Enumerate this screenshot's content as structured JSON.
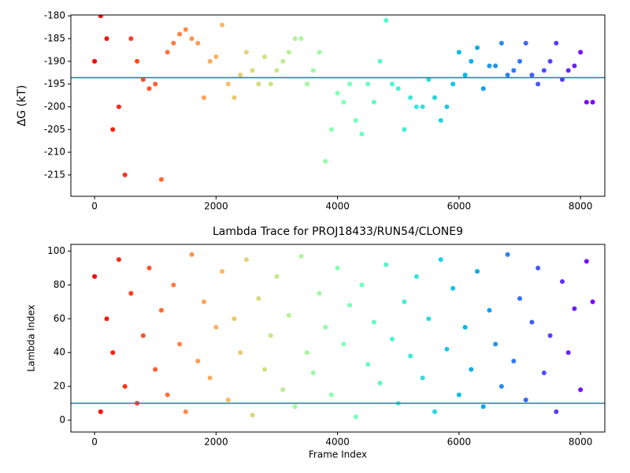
{
  "chart_data": [
    {
      "type": "scatter",
      "ylabel": "ΔG (kT)",
      "colormap": "rainbow_r",
      "hline": -193.6,
      "hline_color": "#207d9c",
      "xlim": [
        -390,
        8400
      ],
      "ylim": [
        -219.7,
        -179.8
      ],
      "xticks": [
        0,
        2000,
        4000,
        6000,
        8000
      ],
      "yticks": [
        -215,
        -210,
        -205,
        -200,
        -195,
        -190,
        -185,
        -180
      ],
      "x": [
        0,
        100,
        200,
        300,
        400,
        500,
        600,
        700,
        800,
        900,
        1000,
        1100,
        1200,
        1300,
        1400,
        1500,
        1600,
        1700,
        1800,
        1900,
        2000,
        2100,
        2200,
        2300,
        2400,
        2500,
        2600,
        2700,
        2800,
        2900,
        3000,
        3100,
        3200,
        3300,
        3400,
        3500,
        3600,
        3700,
        3800,
        3900,
        4000,
        4100,
        4200,
        4300,
        4400,
        4500,
        4600,
        4700,
        4800,
        4900,
        5000,
        5100,
        5200,
        5300,
        5400,
        5500,
        5600,
        5700,
        5800,
        5900,
        6000,
        6100,
        6200,
        6300,
        6400,
        6500,
        6600,
        6700,
        6800,
        6900,
        7000,
        7100,
        7200,
        7300,
        7400,
        7500,
        7600,
        7700,
        7800,
        7900,
        8000,
        8100,
        8200
      ],
      "values": [
        -190,
        -180,
        -185,
        -205,
        -200,
        -215,
        -185,
        -190,
        -194,
        -196,
        -195,
        -216,
        -188,
        -186,
        -184,
        -183,
        -185,
        -186,
        -198,
        -190,
        -189,
        -182,
        -195,
        -198,
        -193,
        -188,
        -192,
        -195,
        -189,
        -195,
        -192,
        -190,
        -188,
        -185,
        -185,
        -195,
        -192,
        -188,
        -212,
        -205,
        -197,
        -199,
        -195,
        -203,
        -206,
        -195,
        -199,
        -190,
        -181,
        -195,
        -196,
        -205,
        -198,
        -200,
        -200,
        -194,
        -198,
        -203,
        -200,
        -195,
        -188,
        -193,
        -190,
        -187,
        -196,
        -191,
        -191,
        -186,
        -193,
        -192,
        -190,
        -186,
        -193,
        -195,
        -192,
        -190,
        -186,
        -194,
        -192,
        -191,
        -188,
        -199,
        -199
      ]
    },
    {
      "type": "scatter",
      "title": "Lambda Trace for PROJ18433/RUN54/CLONE9",
      "xlabel": "Frame Index",
      "ylabel": "Lambda Index",
      "colormap": "rainbow_r",
      "hline": 10,
      "hline_color": "#207d9c",
      "xlim": [
        -390,
        8400
      ],
      "ylim": [
        -7,
        104
      ],
      "xticks": [
        0,
        2000,
        4000,
        6000,
        8000
      ],
      "yticks": [
        0,
        20,
        40,
        60,
        80,
        100
      ],
      "x": [
        0,
        100,
        200,
        300,
        400,
        500,
        600,
        700,
        800,
        900,
        1000,
        1100,
        1200,
        1300,
        1400,
        1500,
        1600,
        1700,
        1800,
        1900,
        2000,
        2100,
        2200,
        2300,
        2400,
        2500,
        2600,
        2700,
        2800,
        2900,
        3000,
        3100,
        3200,
        3300,
        3400,
        3500,
        3600,
        3700,
        3800,
        3900,
        4000,
        4100,
        4200,
        4300,
        4400,
        4500,
        4600,
        4700,
        4800,
        4900,
        5000,
        5100,
        5200,
        5300,
        5400,
        5500,
        5600,
        5700,
        5800,
        5900,
        6000,
        6100,
        6200,
        6300,
        6400,
        6500,
        6600,
        6700,
        6800,
        6900,
        7000,
        7100,
        7200,
        7300,
        7400,
        7500,
        7600,
        7700,
        7800,
        7900,
        8000,
        8100,
        8200
      ],
      "values": [
        85,
        5,
        60,
        40,
        95,
        20,
        75,
        10,
        50,
        90,
        30,
        65,
        15,
        80,
        45,
        5,
        98,
        35,
        70,
        25,
        55,
        88,
        12,
        60,
        40,
        95,
        3,
        72,
        30,
        50,
        85,
        18,
        62,
        8,
        97,
        40,
        28,
        75,
        55,
        15,
        90,
        45,
        68,
        2,
        80,
        33,
        58,
        22,
        92,
        48,
        10,
        70,
        38,
        85,
        25,
        60,
        5,
        95,
        42,
        78,
        15,
        55,
        30,
        88,
        8,
        65,
        45,
        20,
        98,
        35,
        72,
        12,
        58,
        90,
        28,
        50,
        5,
        82,
        40,
        66,
        18,
        94,
        70
      ]
    }
  ]
}
